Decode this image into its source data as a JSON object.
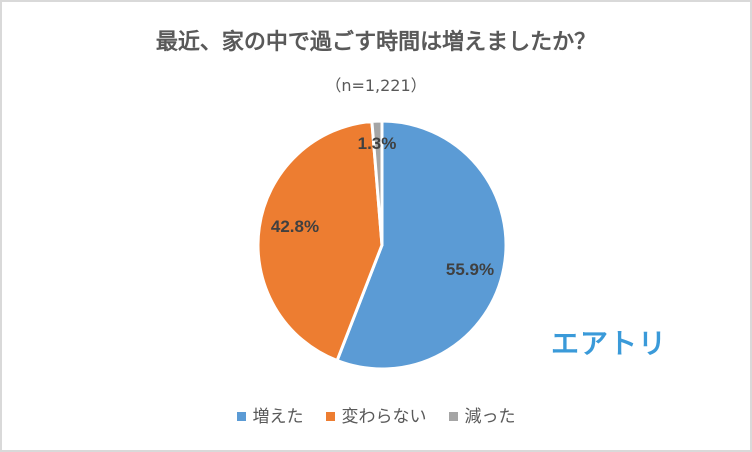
{
  "header": {
    "title": "最近、家の中で過ごす時間は増えましたか？",
    "subtitle": "（n=1,221）"
  },
  "logo": {
    "text": "エアトリ",
    "color": "#3a9ad9"
  },
  "legend": [
    {
      "label": "増えた",
      "color": "#5b9bd5"
    },
    {
      "label": "変わらない",
      "color": "#ed7d31"
    },
    {
      "label": "減った",
      "color": "#a5a5a5"
    }
  ],
  "chart_data": {
    "type": "pie",
    "title": "最近、家の中で過ごす時間は増えましたか？",
    "subtitle": "（n=1,221）",
    "categories": [
      "増えた",
      "変わらない",
      "減った"
    ],
    "values": [
      55.9,
      42.8,
      1.3
    ],
    "labels": [
      "55.9%",
      "42.8%",
      "1.3%"
    ],
    "colors": [
      "#5b9bd5",
      "#ed7d31",
      "#a5a5a5"
    ],
    "legend_position": "bottom",
    "start_angle_deg": 0,
    "direction": "clockwise"
  }
}
